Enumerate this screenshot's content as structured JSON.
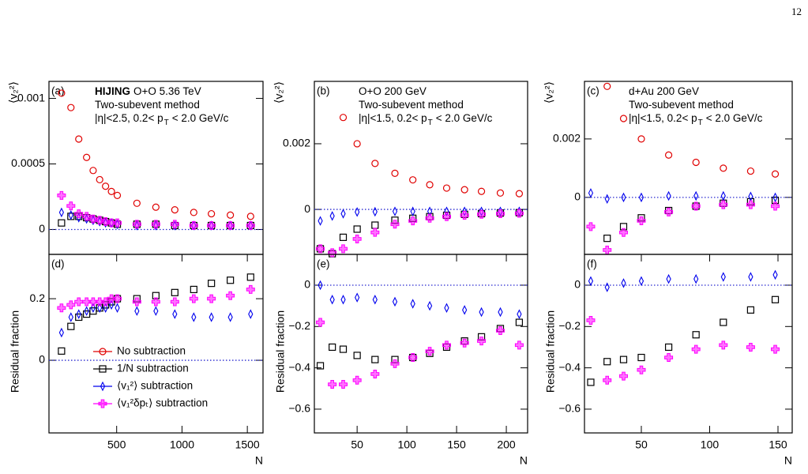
{
  "page_number": "12",
  "chart_data": [
    {
      "type": "scatter",
      "panel_label": "(a)",
      "ylabel": "⟨v₂²⟩",
      "annotations": [
        [
          {
            "text": "HIJING",
            "bold": true
          },
          {
            "text": "O+O 5.36 TeV"
          }
        ],
        [
          {
            "text": "Two-subevent method"
          }
        ],
        [
          {
            "text": "|η|<2.5, 0.2< p"
          },
          {
            "text": "T",
            "sub": true
          },
          {
            "text": "< 2.0 GeV/c"
          }
        ]
      ],
      "x": [
        78,
        150,
        210,
        270,
        320,
        370,
        415,
        460,
        505,
        655,
        800,
        945,
        1090,
        1225,
        1370,
        1525
      ],
      "xlim": [
        -18,
        1620
      ],
      "ylim": [
        -0.00019,
        0.00113
      ],
      "yticks": [
        0,
        0.0005,
        0.001
      ],
      "series": [
        {
          "color": "#e00000",
          "marker": "circle",
          "values": [
            0.00104,
            0.00093,
            0.00069,
            0.00055,
            0.00045,
            0.00038,
            0.00033,
            0.00029,
            0.00026,
            0.0002,
            0.00017,
            0.00015,
            0.00013,
            0.00012,
            0.00011,
            0.0001
          ]
        },
        {
          "color": "#000000",
          "marker": "square",
          "values": [
            5e-05,
            0.0001,
            0.0001,
            9e-05,
            8e-05,
            7e-05,
            6e-05,
            5e-05,
            4e-05,
            4e-05,
            4e-05,
            3e-05,
            3e-05,
            3e-05,
            3e-05,
            3e-05
          ]
        },
        {
          "color": "#0000ee",
          "marker": "diamond",
          "values": [
            0.00013,
            0.00011,
            9e-05,
            8e-05,
            7e-05,
            6e-05,
            5e-05,
            5e-05,
            4e-05,
            3e-05,
            3e-05,
            3e-05,
            3e-05,
            3e-05,
            3e-05,
            3e-05
          ]
        },
        {
          "color": "#ff00ff",
          "marker": "cross",
          "values": [
            0.00026,
            0.00018,
            0.00012,
            0.0001,
            8e-05,
            7e-05,
            6e-05,
            5e-05,
            5e-05,
            4e-05,
            4e-05,
            4e-05,
            3e-05,
            3e-05,
            3e-05,
            3e-05
          ]
        }
      ]
    },
    {
      "type": "scatter",
      "panel_label": "(b)",
      "ylabel": "⟨v₂²⟩",
      "annotations": [
        [
          {
            "text": "O+O 200 GeV"
          }
        ],
        [
          {
            "text": "Two-subevent method"
          }
        ],
        [
          {
            "text": "|η|<1.5, 0.2< p"
          },
          {
            "text": "T",
            "sub": true
          },
          {
            "text": "< 2.0 GeV/c"
          }
        ]
      ],
      "x": [
        13,
        25,
        36,
        50,
        68,
        88,
        106,
        123,
        140,
        158,
        175,
        194,
        213
      ],
      "xlim": [
        7,
        221.4
      ],
      "ylim": [
        -0.00137,
        0.0039
      ],
      "yticks": [
        0,
        0.002
      ],
      "series": [
        {
          "color": "#e00000",
          "marker": "circle",
          "values": [
            null,
            null,
            0.0028,
            0.002,
            0.0014,
            0.0011,
            0.0009,
            0.00075,
            0.00065,
            0.0006,
            0.00055,
            0.0005,
            0.00048
          ]
        },
        {
          "color": "#000000",
          "marker": "square",
          "values": [
            -0.0012,
            -0.00135,
            -0.00085,
            -0.0006,
            -0.00048,
            -0.00033,
            -0.00027,
            -0.00022,
            -0.00018,
            -0.00015,
            -0.00013,
            -0.00011,
            -0.0001
          ]
        },
        {
          "color": "#0000ee",
          "marker": "diamond",
          "values": [
            -0.00035,
            -0.0002,
            -0.00013,
            -8e-05,
            -7e-05,
            -6e-05,
            -6e-05,
            -6e-05,
            -6e-05,
            -6e-05,
            -6e-05,
            -6e-05,
            -6e-05
          ]
        },
        {
          "color": "#ff00ff",
          "marker": "cross",
          "values": [
            -0.0012,
            -0.00132,
            -0.0012,
            -0.0009,
            -0.0007,
            -0.00045,
            -0.00035,
            -0.00027,
            -0.00022,
            -0.00018,
            -0.00015,
            -0.00013,
            -0.00012
          ]
        }
      ]
    },
    {
      "type": "scatter",
      "panel_label": "(c)",
      "ylabel": "⟨v₂²⟩",
      "annotations": [
        [
          {
            "text": "d+Au 200 GeV"
          }
        ],
        [
          {
            "text": "Two-subevent method"
          }
        ],
        [
          {
            "text": "|η|<1.5, 0.2< p"
          },
          {
            "text": "T",
            "sub": true
          },
          {
            "text": "< 2.0 GeV/c"
          }
        ]
      ],
      "x": [
        13,
        25,
        37,
        50,
        70,
        90,
        110,
        130,
        148
      ],
      "xlim": [
        8.4,
        160.4
      ],
      "ylim": [
        -0.00195,
        0.00397
      ],
      "yticks": [
        0,
        0.002
      ],
      "series": [
        {
          "color": "#e00000",
          "marker": "circle",
          "values": [
            null,
            0.0038,
            0.0027,
            0.002,
            0.00145,
            0.0012,
            0.001,
            0.0009,
            0.0008
          ]
        },
        {
          "color": "#000000",
          "marker": "square",
          "values": [
            null,
            -0.0014,
            -0.001,
            -0.0007,
            -0.00045,
            -0.0003,
            -0.0002,
            -0.00015,
            -0.0001
          ]
        },
        {
          "color": "#0000ee",
          "marker": "diamond",
          "values": [
            0.00015,
            -5e-05,
            0,
            0,
            5e-05,
            5e-05,
            5e-05,
            3e-05,
            0
          ]
        },
        {
          "color": "#ff00ff",
          "marker": "cross",
          "values": [
            -0.001,
            -0.0018,
            -0.0012,
            -0.0008,
            -0.0005,
            -0.0003,
            -0.00025,
            -0.00025,
            -0.0003
          ]
        }
      ]
    },
    {
      "type": "scatter",
      "panel_label": "(d)",
      "ylabel": "Residual fraction",
      "xlabel": "N",
      "legend": "lower left",
      "x": [
        78,
        150,
        210,
        270,
        320,
        370,
        415,
        460,
        505,
        655,
        800,
        945,
        1090,
        1225,
        1370,
        1525
      ],
      "xlim": [
        -18,
        1620
      ],
      "xticks": [
        500,
        1000,
        1500
      ],
      "ylim": [
        -0.236,
        0.344
      ],
      "yticks": [
        0,
        0.2
      ],
      "series": [
        {
          "name": "No subtraction",
          "color": "#e00000",
          "marker": "circle",
          "values": [
            null,
            null,
            null,
            null,
            null,
            null,
            null,
            null,
            null,
            null,
            null,
            null,
            null,
            null,
            null,
            null
          ]
        },
        {
          "name": "1/N subtraction",
          "color": "#000000",
          "marker": "square",
          "values": [
            0.03,
            0.11,
            0.14,
            0.15,
            0.16,
            0.17,
            0.18,
            0.19,
            0.2,
            0.2,
            0.21,
            0.22,
            0.23,
            0.25,
            0.26,
            0.27
          ]
        },
        {
          "name": "⟨v₁²⟩ subtraction",
          "color": "#0000ee",
          "marker": "diamond",
          "values": [
            0.09,
            0.14,
            0.15,
            0.16,
            0.17,
            0.17,
            0.17,
            0.18,
            0.17,
            0.16,
            0.16,
            0.15,
            0.14,
            0.14,
            0.14,
            0.15
          ]
        },
        {
          "name": "⟨v₁²δpₜ⟩ subtraction",
          "color": "#ff00ff",
          "marker": "cross",
          "values": [
            0.17,
            0.18,
            0.19,
            0.19,
            0.19,
            0.19,
            0.19,
            0.2,
            0.2,
            0.19,
            0.19,
            0.19,
            0.2,
            0.2,
            0.21,
            0.23
          ]
        }
      ]
    },
    {
      "type": "scatter",
      "panel_label": "(e)",
      "ylabel": "Residual fraction",
      "xlabel": "N",
      "x": [
        13,
        25,
        36,
        50,
        68,
        88,
        106,
        123,
        140,
        158,
        175,
        194,
        213
      ],
      "xlim": [
        7,
        221.4
      ],
      "xticks": [
        50,
        100,
        150,
        200
      ],
      "ylim": [
        -0.715,
        0.149
      ],
      "yticks": [
        0,
        {
          "value": -0.2,
          "label": "−0.2"
        },
        {
          "value": -0.4,
          "label": "−0.4"
        },
        {
          "value": -0.6,
          "label": "−0.6"
        }
      ],
      "series": [
        {
          "color": "#000000",
          "marker": "square",
          "values": [
            -0.39,
            -0.3,
            -0.31,
            -0.34,
            -0.36,
            -0.36,
            -0.35,
            -0.33,
            -0.3,
            -0.27,
            -0.25,
            -0.21,
            -0.18
          ]
        },
        {
          "color": "#0000ee",
          "marker": "diamond",
          "values": [
            0,
            -0.07,
            -0.07,
            -0.06,
            -0.07,
            -0.08,
            -0.09,
            -0.1,
            -0.11,
            -0.12,
            -0.13,
            -0.13,
            -0.14
          ]
        },
        {
          "color": "#ff00ff",
          "marker": "cross",
          "values": [
            -0.18,
            -0.48,
            -0.48,
            -0.46,
            -0.43,
            -0.38,
            -0.35,
            -0.32,
            -0.29,
            -0.28,
            -0.27,
            -0.22,
            -0.29
          ]
        }
      ]
    },
    {
      "type": "scatter",
      "panel_label": "(f)",
      "ylabel": "Residual fraction",
      "xlabel": "N",
      "x": [
        13,
        25,
        37,
        50,
        70,
        90,
        110,
        130,
        148
      ],
      "xlim": [
        8.4,
        160.4
      ],
      "xticks": [
        50,
        100,
        150
      ],
      "ylim": [
        -0.715,
        0.149
      ],
      "yticks": [
        0,
        {
          "value": -0.2,
          "label": "−0.2"
        },
        {
          "value": -0.4,
          "label": "−0.4"
        },
        {
          "value": -0.6,
          "label": "−0.6"
        }
      ],
      "series": [
        {
          "color": "#000000",
          "marker": "square",
          "values": [
            -0.47,
            -0.37,
            -0.36,
            -0.35,
            -0.3,
            -0.24,
            -0.18,
            -0.12,
            -0.07
          ]
        },
        {
          "color": "#0000ee",
          "marker": "diamond",
          "values": [
            0.02,
            -0.01,
            0.01,
            0.02,
            0.03,
            0.03,
            0.04,
            0.04,
            0.05
          ]
        },
        {
          "color": "#ff00ff",
          "marker": "cross",
          "values": [
            -0.17,
            -0.46,
            -0.44,
            -0.41,
            -0.35,
            -0.31,
            -0.29,
            -0.3,
            -0.31
          ]
        }
      ]
    }
  ]
}
